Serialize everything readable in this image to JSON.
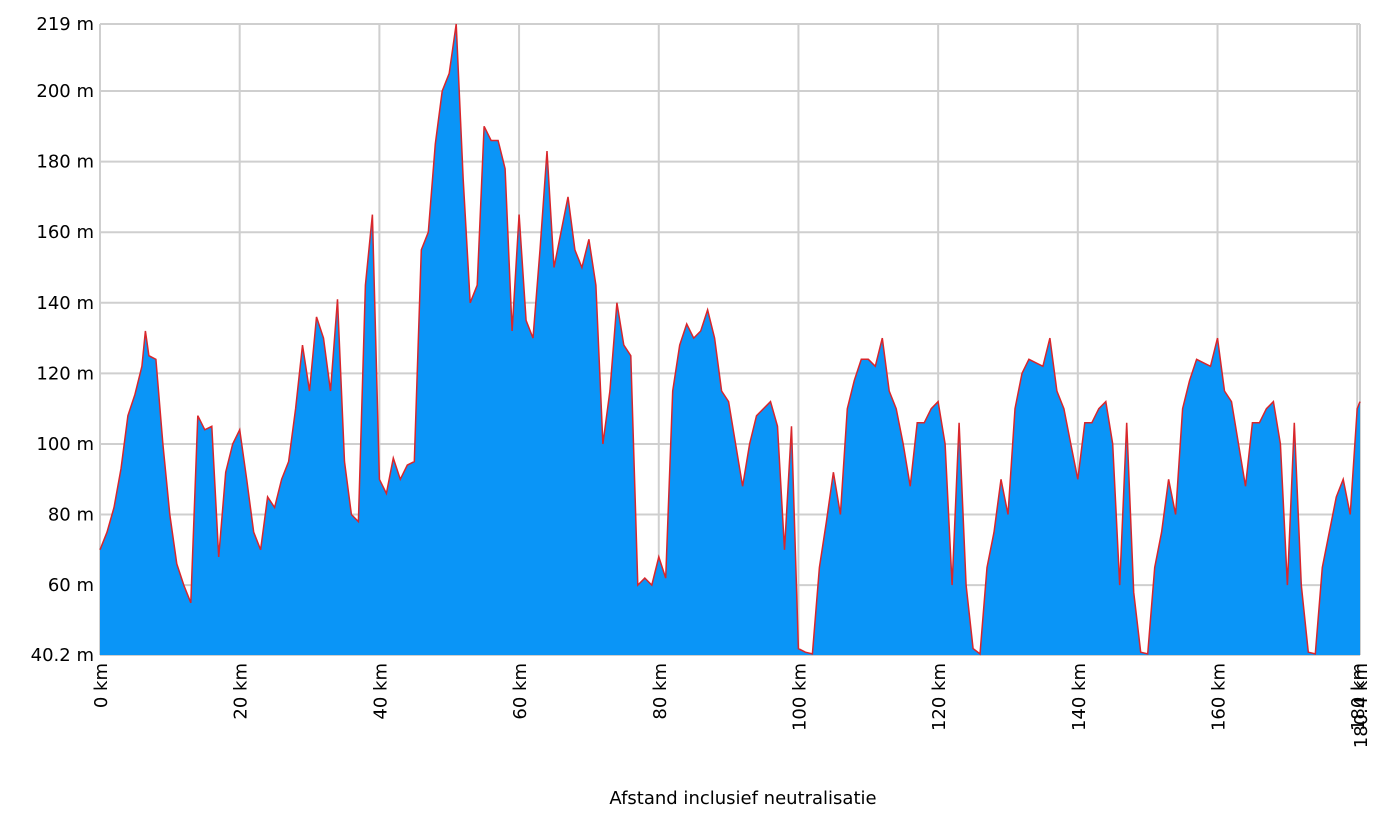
{
  "chart_data": {
    "type": "area",
    "xlabel": "Afstand inclusief neutralisatie",
    "x": [
      0,
      1,
      2,
      3,
      4,
      5,
      6,
      6.5,
      7,
      8,
      9,
      10,
      11,
      12,
      13,
      14,
      15,
      16,
      17,
      18,
      19,
      20,
      21,
      22,
      23,
      24,
      25,
      26,
      27,
      28,
      29,
      30,
      31,
      32,
      33,
      34,
      35,
      36,
      37,
      38,
      39,
      40,
      41,
      42,
      43,
      44,
      45,
      46,
      47,
      48,
      49,
      50,
      51,
      52,
      53,
      54,
      55,
      56,
      57,
      58,
      59,
      60,
      61,
      62,
      63,
      64,
      65,
      66,
      67,
      68,
      69,
      70,
      71,
      72,
      73,
      74,
      75,
      76,
      77,
      78,
      79,
      80,
      81,
      82,
      83,
      84,
      85,
      86,
      87,
      88,
      89,
      90,
      91,
      92,
      93,
      94,
      95,
      96,
      97,
      98,
      99,
      100,
      101,
      102,
      103,
      104,
      105,
      106,
      107,
      108,
      109,
      110,
      111,
      112,
      113,
      114,
      115,
      116,
      117,
      118,
      119,
      120,
      121,
      122,
      123,
      124,
      125,
      126,
      127,
      128,
      129,
      130,
      131,
      132,
      133,
      134,
      135,
      136,
      137,
      138,
      139,
      140,
      141,
      142,
      143,
      144,
      145,
      146,
      147,
      148,
      149,
      150,
      151,
      152,
      153,
      154,
      155,
      156,
      157,
      158,
      159,
      160,
      161,
      162,
      163,
      164,
      165,
      166,
      167,
      168,
      169,
      170,
      171,
      172,
      173,
      174,
      175,
      176,
      177,
      178,
      179,
      180,
      180.4
    ],
    "series": [
      {
        "color": "#0a95f7",
        "line_color": "#d9262b",
        "values": [
          70,
          75,
          82,
          93,
          108,
          114,
          122,
          132,
          125,
          124,
          100,
          80,
          66,
          60,
          55,
          108,
          104,
          105,
          68,
          92,
          100,
          104,
          90,
          75,
          70,
          85,
          82,
          90,
          95,
          110,
          128,
          115,
          136,
          130,
          115,
          141,
          95,
          80,
          78,
          145,
          165,
          90,
          86,
          96,
          90,
          94,
          95,
          155,
          160,
          185,
          200,
          205,
          219,
          175,
          140,
          145,
          190,
          186,
          186,
          178,
          132,
          165,
          135,
          130,
          155,
          183,
          150,
          160,
          170,
          155,
          150,
          158,
          145,
          100,
          115,
          140,
          128,
          125,
          60,
          62,
          60,
          68,
          62,
          115,
          128,
          134,
          130,
          132,
          138,
          130,
          115,
          112,
          100,
          88,
          100,
          108,
          110,
          112,
          105,
          70,
          105,
          42,
          41,
          40.5,
          65,
          78,
          92,
          80,
          110,
          118,
          124,
          124,
          122,
          130,
          115,
          110,
          100,
          88,
          106,
          106,
          110,
          112,
          100,
          60,
          106,
          60,
          42,
          40.5,
          65,
          75,
          90,
          80,
          110,
          120,
          124,
          123,
          122,
          130,
          115,
          110,
          100,
          90,
          106,
          106,
          110,
          112,
          100,
          60,
          106,
          58,
          41,
          40.5,
          65,
          75,
          90,
          80,
          110,
          118,
          124,
          123,
          122,
          130,
          115,
          112,
          100,
          88,
          106,
          106,
          110,
          112,
          100,
          60,
          106,
          60,
          41,
          40.5,
          65,
          75,
          85,
          90,
          80,
          110,
          112
        ]
      }
    ],
    "xlim": [
      0,
      180.4
    ],
    "ylim": [
      40.2,
      219
    ],
    "xticks": [
      {
        "value": 0,
        "label": "0 km"
      },
      {
        "value": 20,
        "label": "20 km"
      },
      {
        "value": 40,
        "label": "40 km"
      },
      {
        "value": 60,
        "label": "60 km"
      },
      {
        "value": 80,
        "label": "80 km"
      },
      {
        "value": 100,
        "label": "100 km"
      },
      {
        "value": 120,
        "label": "120 km"
      },
      {
        "value": 140,
        "label": "140 km"
      },
      {
        "value": 160,
        "label": "160 km"
      },
      {
        "value": 180,
        "label": "180 km"
      },
      {
        "value": 180.4,
        "label": "180.4 km"
      }
    ],
    "yticks": [
      {
        "value": 40.2,
        "label": "40.2 m"
      },
      {
        "value": 60,
        "label": "60 m"
      },
      {
        "value": 80,
        "label": "80 m"
      },
      {
        "value": 100,
        "label": "100 m"
      },
      {
        "value": 120,
        "label": "120 m"
      },
      {
        "value": 140,
        "label": "140 m"
      },
      {
        "value": 160,
        "label": "160 m"
      },
      {
        "value": 180,
        "label": "180 m"
      },
      {
        "value": 200,
        "label": "200 m"
      },
      {
        "value": 219,
        "label": "219 m"
      }
    ],
    "grid": true
  }
}
